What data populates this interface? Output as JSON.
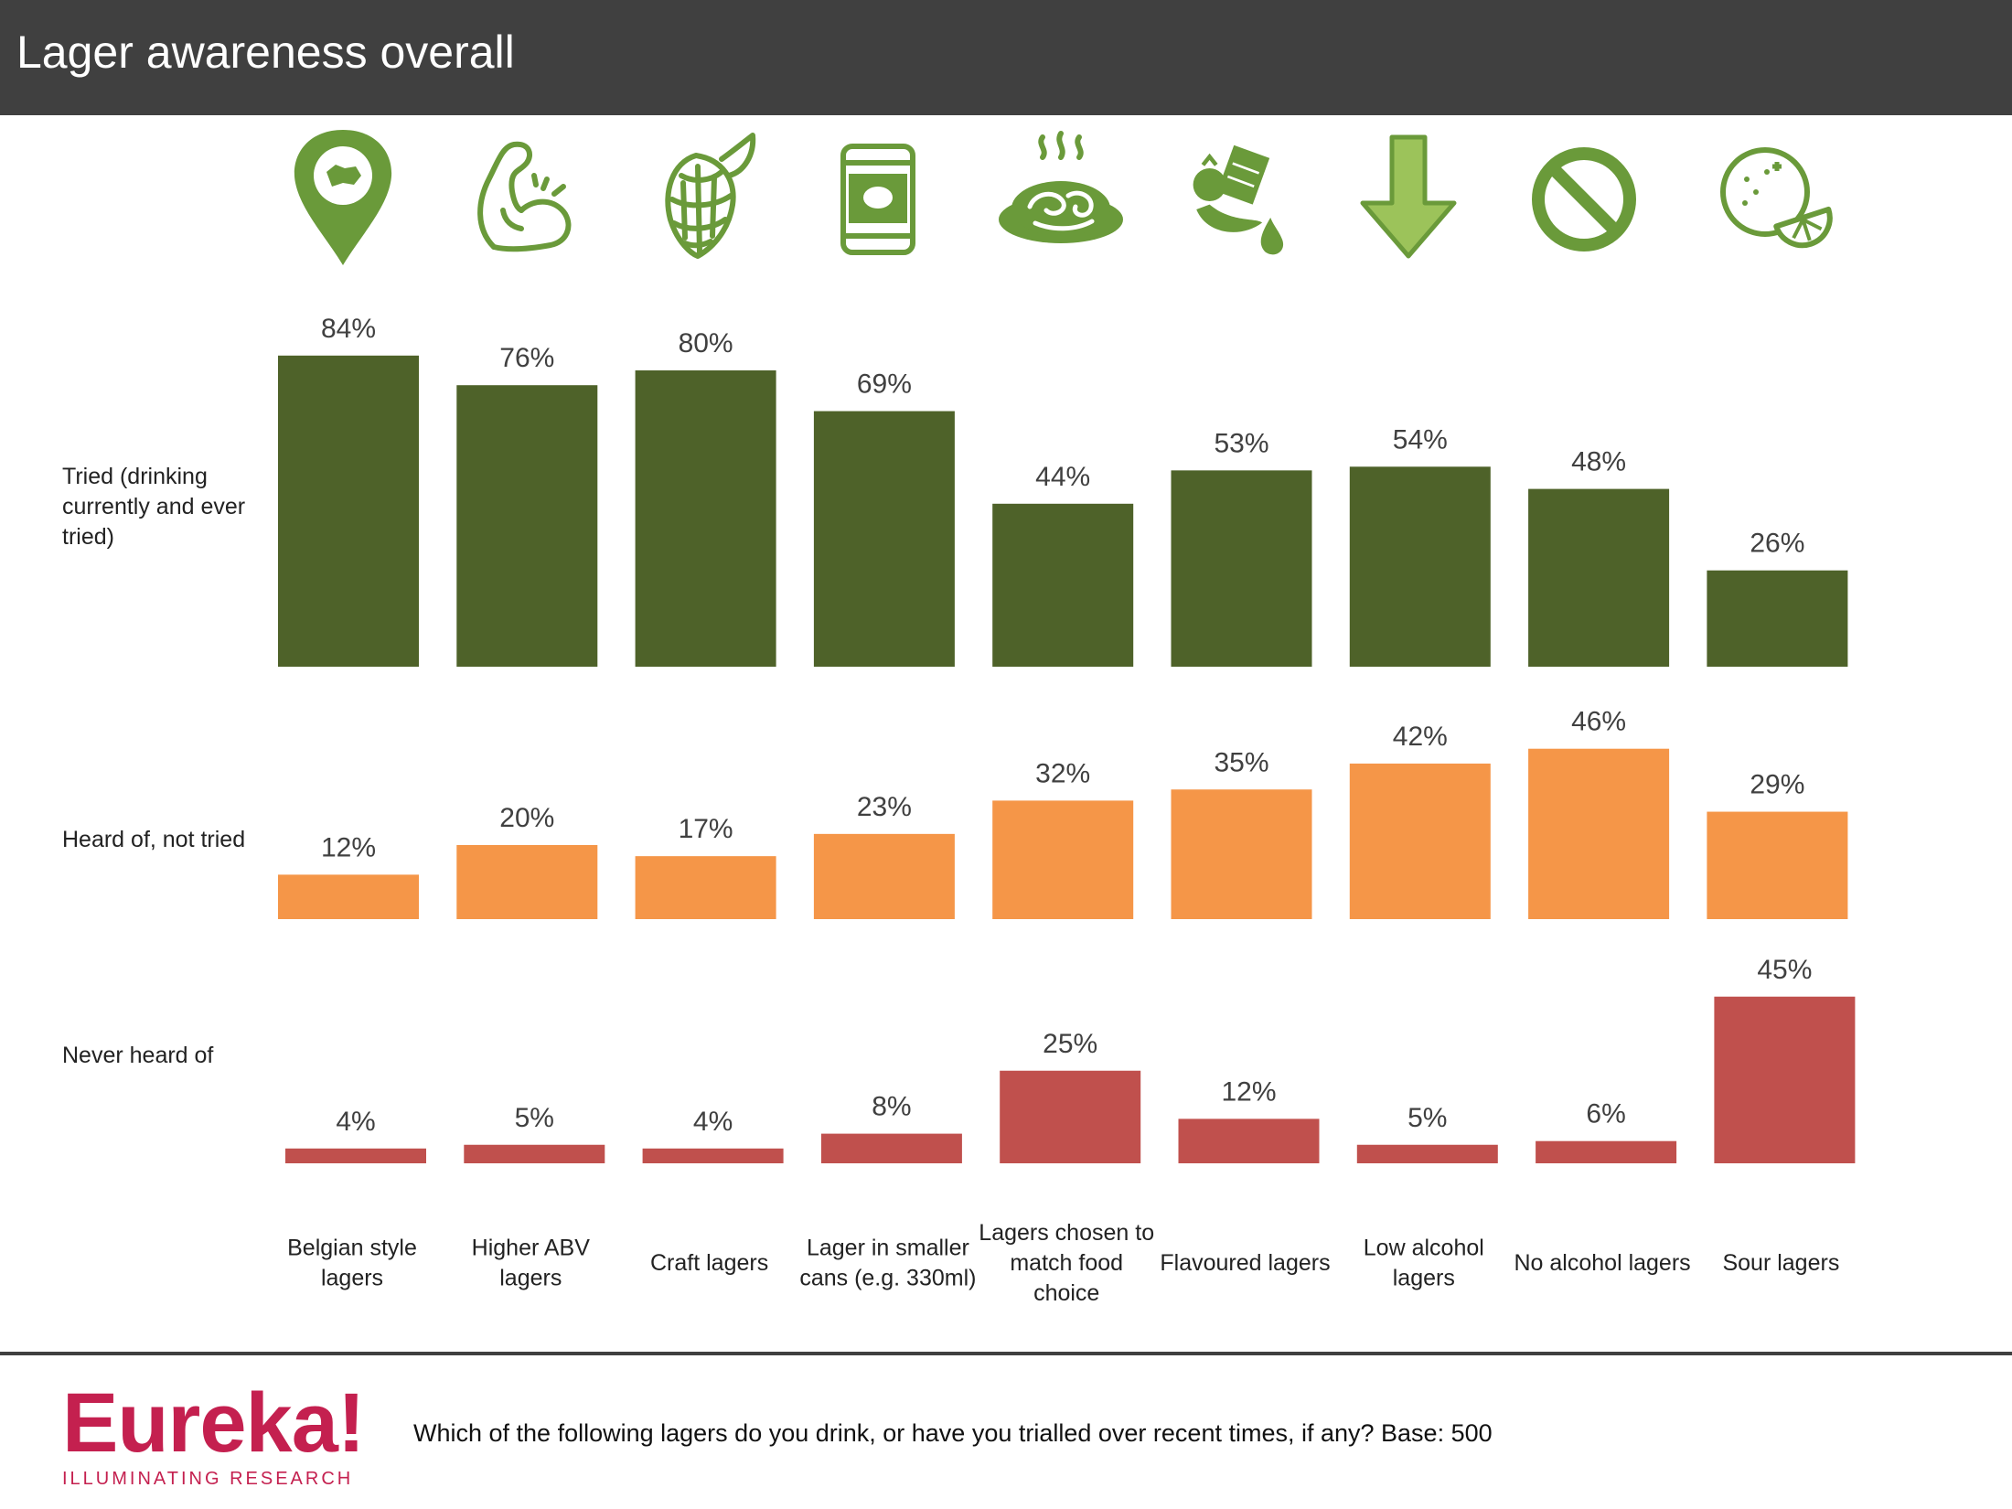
{
  "header": {
    "title": "Lager awareness overall"
  },
  "row_labels": {
    "tried": "Tried (drinking currently and ever tried)",
    "heard": "Heard of, not tried",
    "never": "Never heard of"
  },
  "icons": [
    "map-pin-belgium-icon",
    "flexed-arm-icon",
    "hop-cone-icon",
    "beer-can-icon",
    "steaming-food-plate-icon",
    "fruit-chocolate-drop-icon",
    "down-arrow-icon",
    "prohibited-icon",
    "citrus-fruit-icon"
  ],
  "colors": {
    "tried": "#4e6229",
    "heard": "#f59648",
    "never": "#c0504d",
    "icon": "#6a9a3a",
    "header": "#404040",
    "brand": "#c4204f"
  },
  "chart_data": {
    "type": "bar",
    "categories": [
      "Belgian style lagers",
      "Higher ABV lagers",
      "Craft lagers",
      "Lager in smaller cans (e.g. 330ml)",
      "Lagers chosen to match food choice",
      "Flavoured lagers",
      "Low alcohol lagers",
      "No alcohol lagers",
      "Sour lagers"
    ],
    "series": [
      {
        "name": "Tried (drinking currently and ever tried)",
        "values": [
          84,
          76,
          80,
          69,
          44,
          53,
          54,
          48,
          26
        ]
      },
      {
        "name": "Heard of, not tried",
        "values": [
          12,
          20,
          17,
          23,
          32,
          35,
          42,
          46,
          29
        ]
      },
      {
        "name": "Never heard of",
        "values": [
          4,
          5,
          4,
          8,
          25,
          12,
          5,
          6,
          45
        ]
      }
    ],
    "value_suffix": "%",
    "ylim": [
      0,
      100
    ]
  },
  "footer": {
    "brand": "Eureka!",
    "tagline": "ILLUMINATING RESEARCH",
    "question": "Which of the following lagers do you drink, or have you trialled over recent times, if any? Base: 500"
  }
}
